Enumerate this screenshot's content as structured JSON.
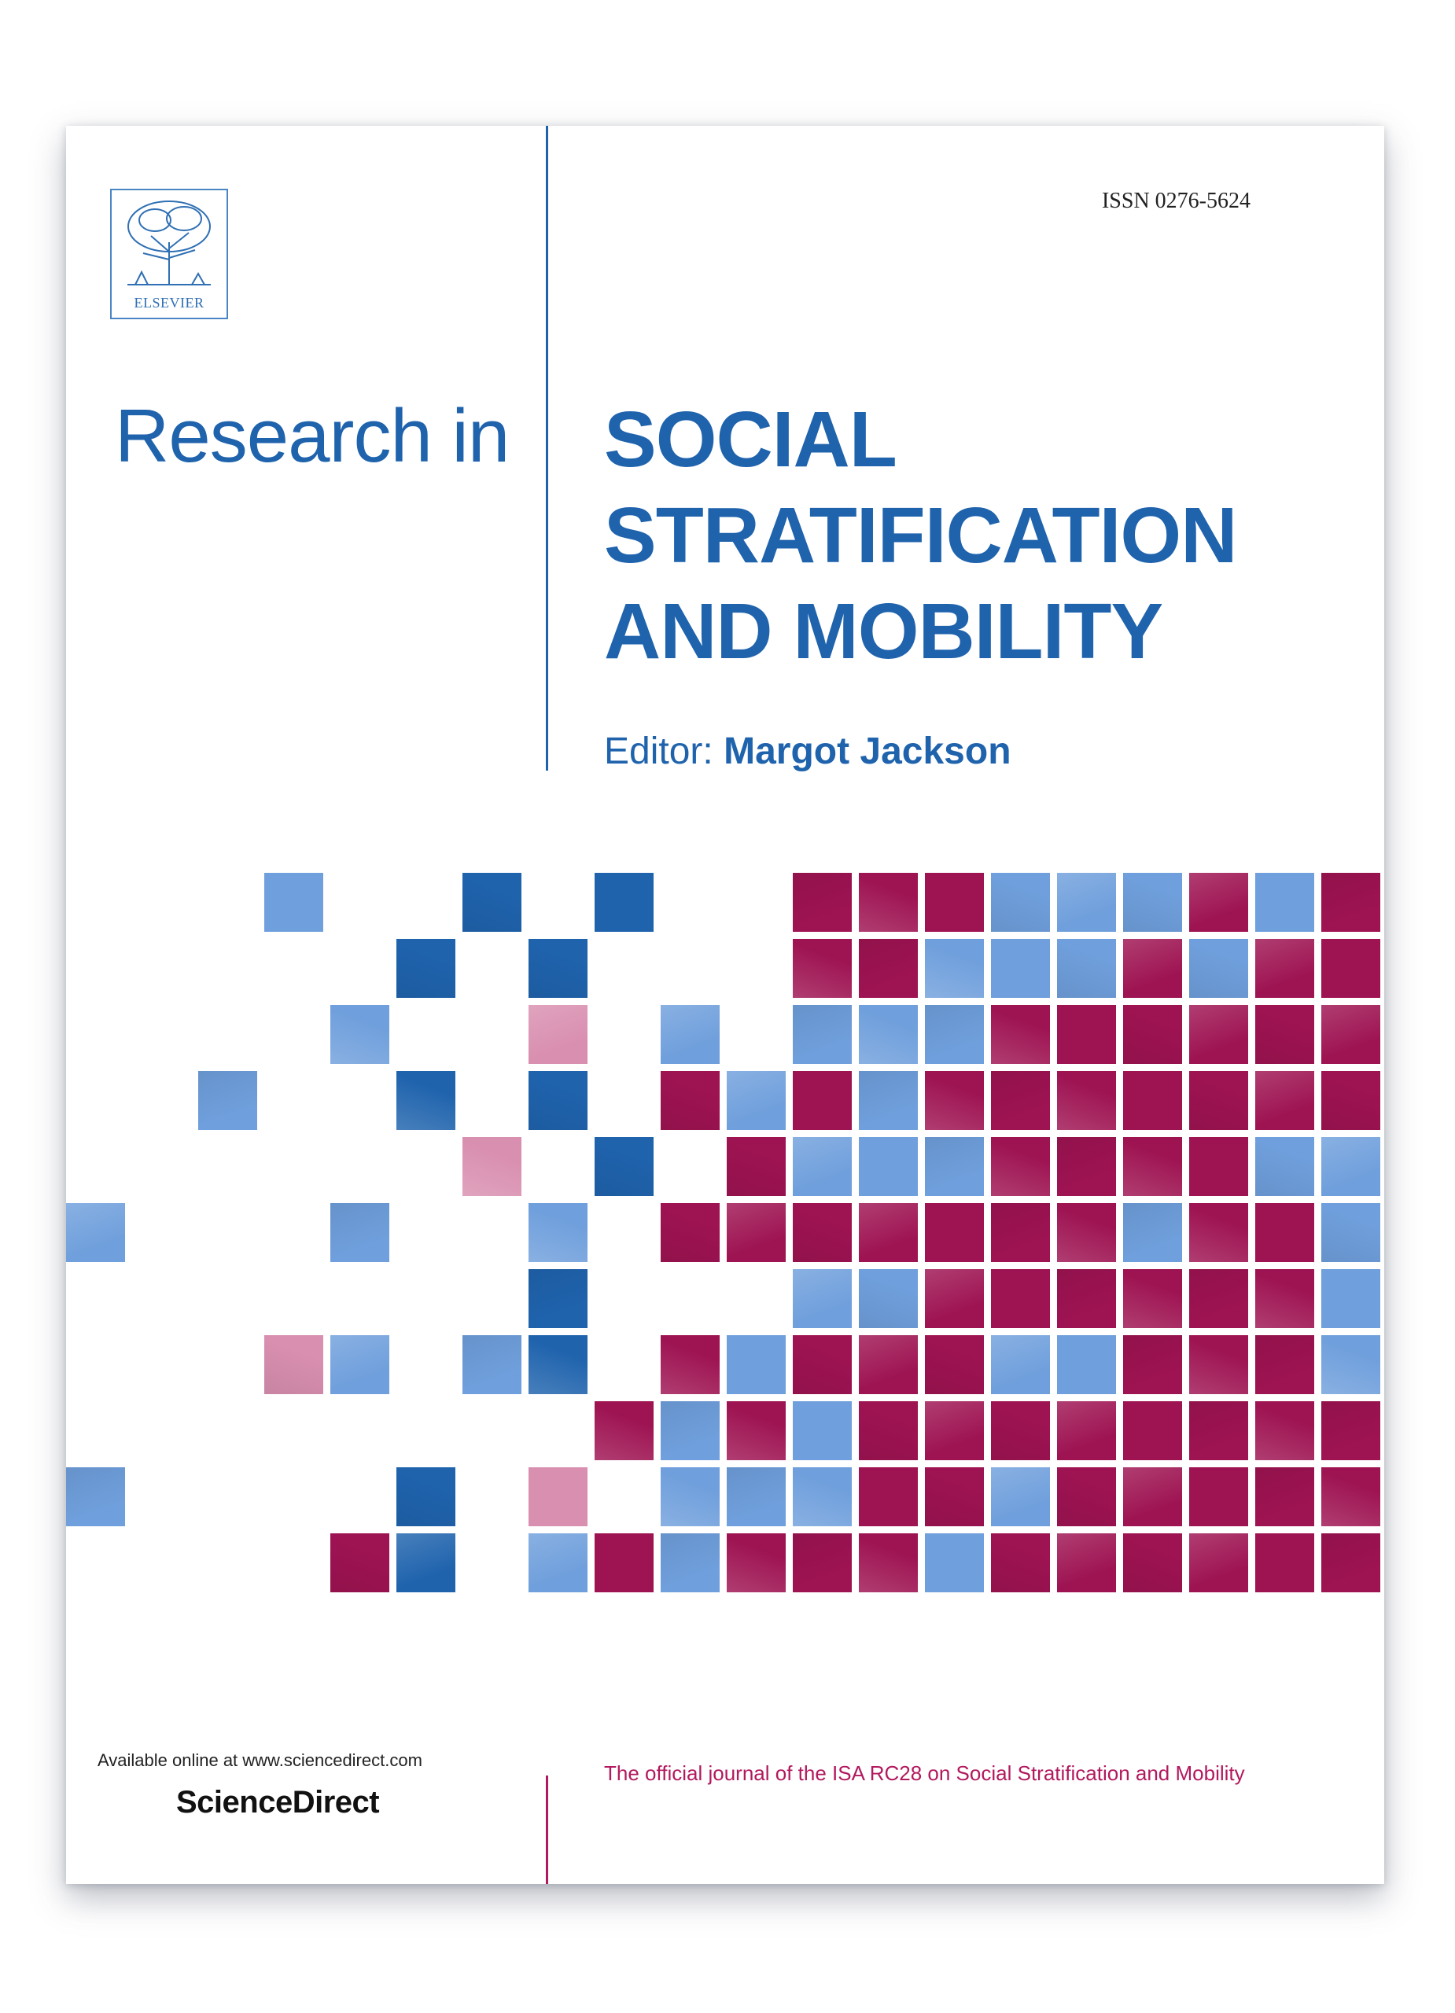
{
  "publisher": {
    "logo_text": "ELSEVIER",
    "logo_icon": "elsevier-tree-icon"
  },
  "issn": "ISSN 0276-5624",
  "title": {
    "prefix": "Research in",
    "line1": "SOCIAL",
    "line2": "STRATIFICATION",
    "line3": "AND MOBILITY"
  },
  "editor": {
    "label": "Editor:",
    "name": "Margot Jackson"
  },
  "footer": {
    "available": "Available online at www.sciencedirect.com",
    "platform": "ScienceDirect",
    "official": "The official journal of the ISA RC28 on Social Stratification and Mobility"
  },
  "colors": {
    "blue": "#1f63ad",
    "light_blue": "#6f9fdc",
    "magenta": "#9e1352",
    "pink": "#d98fb0"
  }
}
